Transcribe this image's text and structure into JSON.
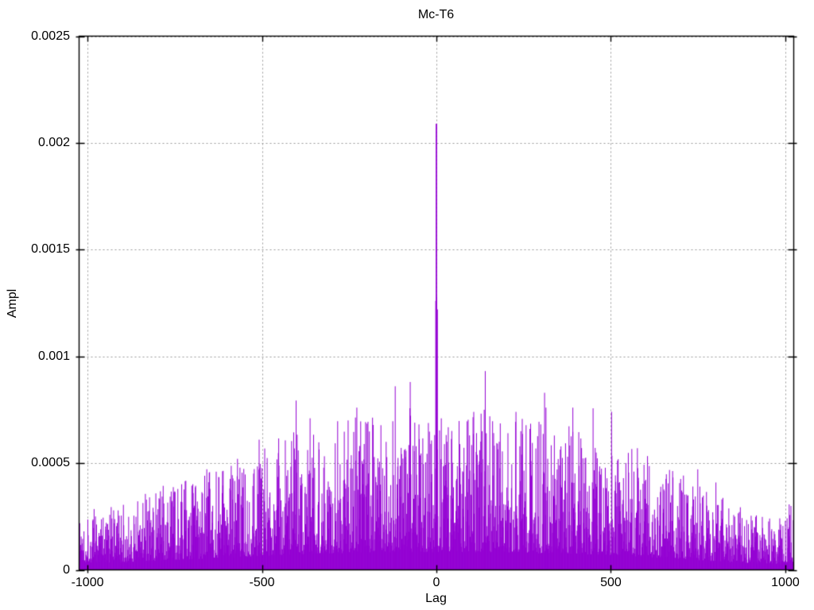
{
  "chart_data": {
    "type": "impulses",
    "title": "Mc-T6",
    "xlabel": "Lag",
    "ylabel": "Ampl",
    "xlim": [
      -1024,
      1024
    ],
    "ylim": [
      0,
      0.0025
    ],
    "xticks": [
      {
        "value": -1000,
        "label": "-1000"
      },
      {
        "value": -500,
        "label": "-500"
      },
      {
        "value": 0,
        "label": "0"
      },
      {
        "value": 500,
        "label": "500"
      },
      {
        "value": 1000,
        "label": "1000"
      }
    ],
    "yticks": [
      {
        "value": 0,
        "label": "0"
      },
      {
        "value": 0.0005,
        "label": "0.0005"
      },
      {
        "value": 0.001,
        "label": "0.001"
      },
      {
        "value": 0.0015,
        "label": "0.0015"
      },
      {
        "value": 0.002,
        "label": "0.002"
      },
      {
        "value": 0.0025,
        "label": "0.0025"
      }
    ],
    "grid": true,
    "grid_style": "dotted",
    "grid_color": "#9a9a9a",
    "border_color": "#000000",
    "line_color": "#9400D3",
    "background": "#ffffff",
    "legend": "none",
    "main_peak": {
      "lag": 0,
      "ampl": 0.00209
    },
    "secondary_peaks": [
      {
        "lag": 1,
        "ampl": 0.00128
      },
      {
        "lag": -2,
        "ampl": 0.00126
      },
      {
        "lag": 3,
        "ampl": 0.00122
      },
      {
        "lag": -75,
        "ampl": 0.00088
      },
      {
        "lag": -118,
        "ampl": 0.00086
      },
      {
        "lag": -228,
        "ampl": 0.00076
      },
      {
        "lag": -253,
        "ampl": 0.0007
      },
      {
        "lag": -362,
        "ampl": 0.00071
      },
      {
        "lag": -508,
        "ampl": 0.00061
      },
      {
        "lag": -16,
        "ampl": 0.00059
      },
      {
        "lag": 30,
        "ampl": 0.0006
      },
      {
        "lag": 107,
        "ampl": 0.00074
      },
      {
        "lag": 137,
        "ampl": 0.00075
      },
      {
        "lag": 228,
        "ampl": 0.00074
      },
      {
        "lag": 314,
        "ampl": 0.00076
      },
      {
        "lag": 391,
        "ampl": 0.00076
      },
      {
        "lag": 576,
        "ampl": 0.00057
      }
    ],
    "noise_model": {
      "seed": 1337,
      "lag_min": -1023,
      "lag_max": 1023,
      "step": 1,
      "base_frac": 0.25,
      "power": 2.0,
      "scale": 2.0,
      "envelope": [
        [
          -1023,
          0.00014
        ],
        [
          -950,
          0.00013
        ],
        [
          -900,
          0.00014
        ],
        [
          -800,
          0.00017
        ],
        [
          -700,
          0.0002
        ],
        [
          -600,
          0.00023
        ],
        [
          -500,
          0.00026
        ],
        [
          -400,
          0.00029
        ],
        [
          -300,
          0.00031
        ],
        [
          -200,
          0.00032
        ],
        [
          -100,
          0.00033
        ],
        [
          0,
          0.00033
        ],
        [
          100,
          0.00033
        ],
        [
          200,
          0.00032
        ],
        [
          300,
          0.00031
        ],
        [
          400,
          0.0003
        ],
        [
          500,
          0.00027
        ],
        [
          600,
          0.00024
        ],
        [
          700,
          0.0002
        ],
        [
          800,
          0.00016
        ],
        [
          900,
          0.00012
        ],
        [
          980,
          0.00011
        ],
        [
          1023,
          0.00015
        ]
      ]
    }
  }
}
